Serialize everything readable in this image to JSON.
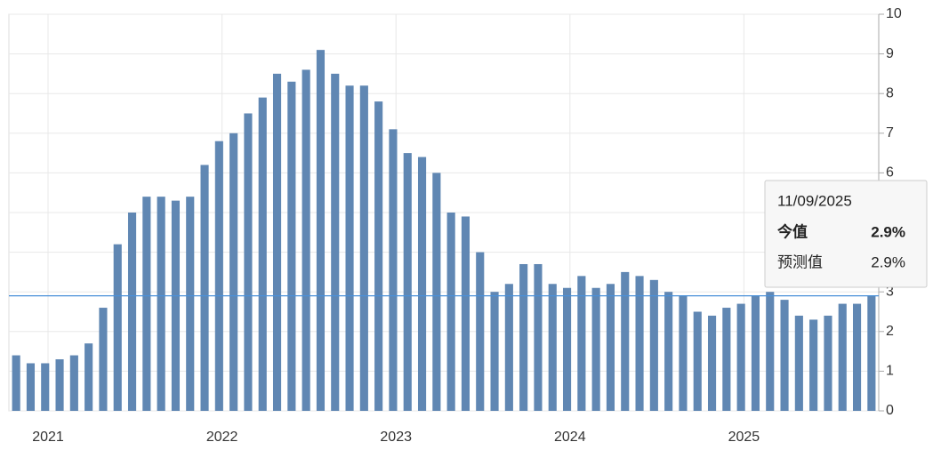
{
  "chart_data": {
    "type": "bar",
    "categories": [
      null,
      null,
      null,
      null,
      null,
      null,
      null,
      null,
      null,
      null,
      null,
      null,
      null,
      null,
      null,
      null,
      null,
      null,
      null,
      null,
      null,
      null,
      null,
      null,
      null,
      null,
      null,
      null,
      null,
      null,
      null,
      null,
      null,
      null,
      null,
      null,
      null,
      null,
      null,
      null,
      null,
      null,
      null,
      null,
      null,
      null,
      null,
      null,
      null,
      null,
      null,
      null,
      null,
      null,
      null,
      null,
      null,
      null,
      null,
      null
    ],
    "values": [
      1.4,
      1.2,
      1.2,
      1.3,
      1.4,
      1.7,
      2.6,
      4.2,
      5.0,
      5.4,
      5.4,
      5.3,
      5.4,
      6.2,
      6.8,
      7.0,
      7.5,
      7.9,
      8.5,
      8.3,
      8.6,
      9.1,
      8.5,
      8.2,
      8.2,
      7.8,
      7.1,
      6.5,
      6.4,
      6.0,
      5.0,
      4.9,
      4.0,
      3.0,
      3.2,
      3.7,
      3.7,
      3.2,
      3.1,
      3.4,
      3.1,
      3.2,
      3.5,
      3.4,
      3.3,
      3.0,
      2.9,
      2.5,
      2.4,
      2.6,
      2.7,
      2.9,
      3.0,
      2.8,
      2.4,
      2.3,
      2.4,
      2.7,
      2.7,
      2.9
    ],
    "color": "#6087b3",
    "ylim": [
      0,
      10
    ],
    "yticks": [
      0,
      1,
      2,
      3,
      4,
      5,
      6,
      7,
      8,
      9,
      10
    ],
    "xlim": [
      -0.5,
      59.5
    ],
    "xticks": [
      {
        "value": 2.2,
        "label": "2021"
      },
      {
        "value": 14.2,
        "label": "2022"
      },
      {
        "value": 26.2,
        "label": "2023"
      },
      {
        "value": 38.2,
        "label": "2024"
      },
      {
        "value": 50.2,
        "label": "2025"
      }
    ],
    "grid": true,
    "tooltip": {
      "date": "11/09/2025",
      "rows": [
        {
          "label": "今值",
          "value": 2.9,
          "value_label": "2.9%"
        },
        {
          "label": "预测值",
          "value": 2.9,
          "value_label": "2.9%"
        }
      ]
    }
  }
}
